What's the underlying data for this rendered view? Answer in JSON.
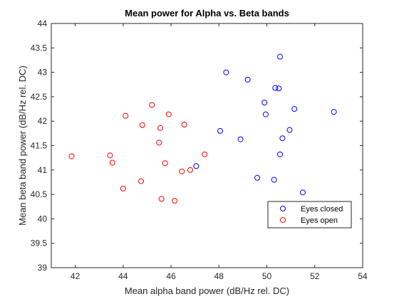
{
  "chart_data": {
    "type": "scatter",
    "title": "Mean power for Alpha vs. Beta bands",
    "xlabel": "Mean alpha band power (dB/Hz rel. DC)",
    "ylabel": "Mean beta band power (dB/Hz rel. DC)",
    "xlim": [
      41,
      54
    ],
    "ylim": [
      39,
      44
    ],
    "xticks": [
      "42",
      "44",
      "46",
      "48",
      "50",
      "52",
      "54"
    ],
    "yticks": [
      "39",
      "39.5",
      "40",
      "40.5",
      "41",
      "41.5",
      "42",
      "42.5",
      "43",
      "43.5",
      "44"
    ],
    "grid": false,
    "legend_position": "bottom-right",
    "series": [
      {
        "name": "Eyes closed",
        "color": "#0000ff",
        "marker": "circle",
        "points": [
          [
            48.3,
            43.0
          ],
          [
            49.2,
            42.85
          ],
          [
            50.55,
            43.32
          ],
          [
            50.35,
            42.68
          ],
          [
            50.5,
            42.67
          ],
          [
            49.9,
            42.38
          ],
          [
            51.15,
            42.25
          ],
          [
            52.8,
            42.19
          ],
          [
            49.95,
            42.14
          ],
          [
            48.05,
            41.8
          ],
          [
            48.9,
            41.63
          ],
          [
            50.65,
            41.65
          ],
          [
            50.95,
            41.82
          ],
          [
            50.55,
            41.32
          ],
          [
            47.05,
            41.08
          ],
          [
            49.6,
            40.84
          ],
          [
            50.3,
            40.8
          ],
          [
            51.5,
            40.54
          ]
        ]
      },
      {
        "name": "Eyes open",
        "color": "#ff0000",
        "marker": "circle",
        "points": [
          [
            45.2,
            42.33
          ],
          [
            44.1,
            42.11
          ],
          [
            45.9,
            42.14
          ],
          [
            44.8,
            41.92
          ],
          [
            45.55,
            41.86
          ],
          [
            46.55,
            41.93
          ],
          [
            45.5,
            41.56
          ],
          [
            41.85,
            41.28
          ],
          [
            43.45,
            41.3
          ],
          [
            47.4,
            41.32
          ],
          [
            43.55,
            41.15
          ],
          [
            45.75,
            41.14
          ],
          [
            46.8,
            41.0
          ],
          [
            46.45,
            40.97
          ],
          [
            44.75,
            40.77
          ],
          [
            44.0,
            40.62
          ],
          [
            45.6,
            40.41
          ],
          [
            46.15,
            40.37
          ]
        ]
      }
    ]
  }
}
